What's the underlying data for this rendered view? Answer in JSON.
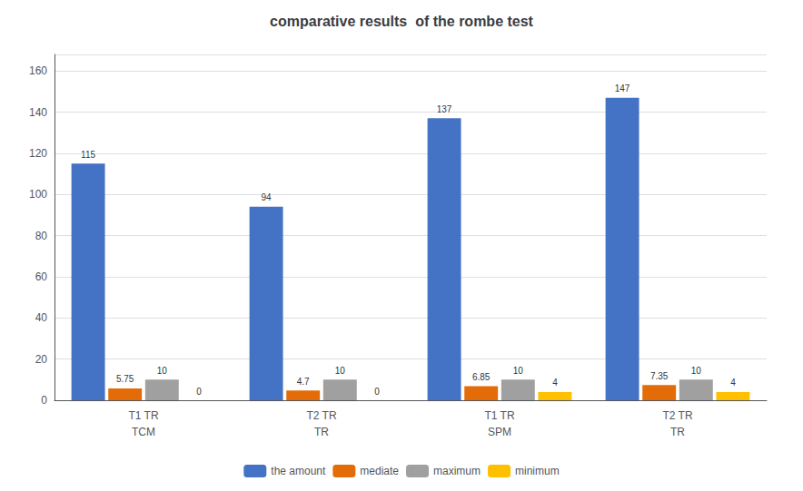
{
  "chart_data": {
    "type": "bar",
    "title": "comparative results  of the rombe test",
    "categories": [
      "T1 TR",
      "T2 TR",
      "T1 TR",
      "T2 TR"
    ],
    "groups": [
      "TCM",
      "TR",
      "SPM",
      "TR"
    ],
    "series": [
      {
        "name": "the amount",
        "color": "#4472C4",
        "values": [
          115,
          94,
          137,
          147
        ]
      },
      {
        "name": "mediate",
        "color": "#E36C09",
        "values": [
          5.75,
          4.7,
          6.85,
          7.35
        ]
      },
      {
        "name": "maximum",
        "color": "#A0A0A0",
        "values": [
          10,
          10,
          10,
          10
        ]
      },
      {
        "name": "minimum",
        "color": "#FFC000",
        "values": [
          0,
          0,
          4,
          4
        ]
      }
    ],
    "ylim": [
      0,
      168
    ],
    "yticks": [
      0,
      20,
      40,
      60,
      80,
      100,
      120,
      140,
      160
    ],
    "grid": true,
    "legend": "bottom",
    "data_labels": true
  }
}
